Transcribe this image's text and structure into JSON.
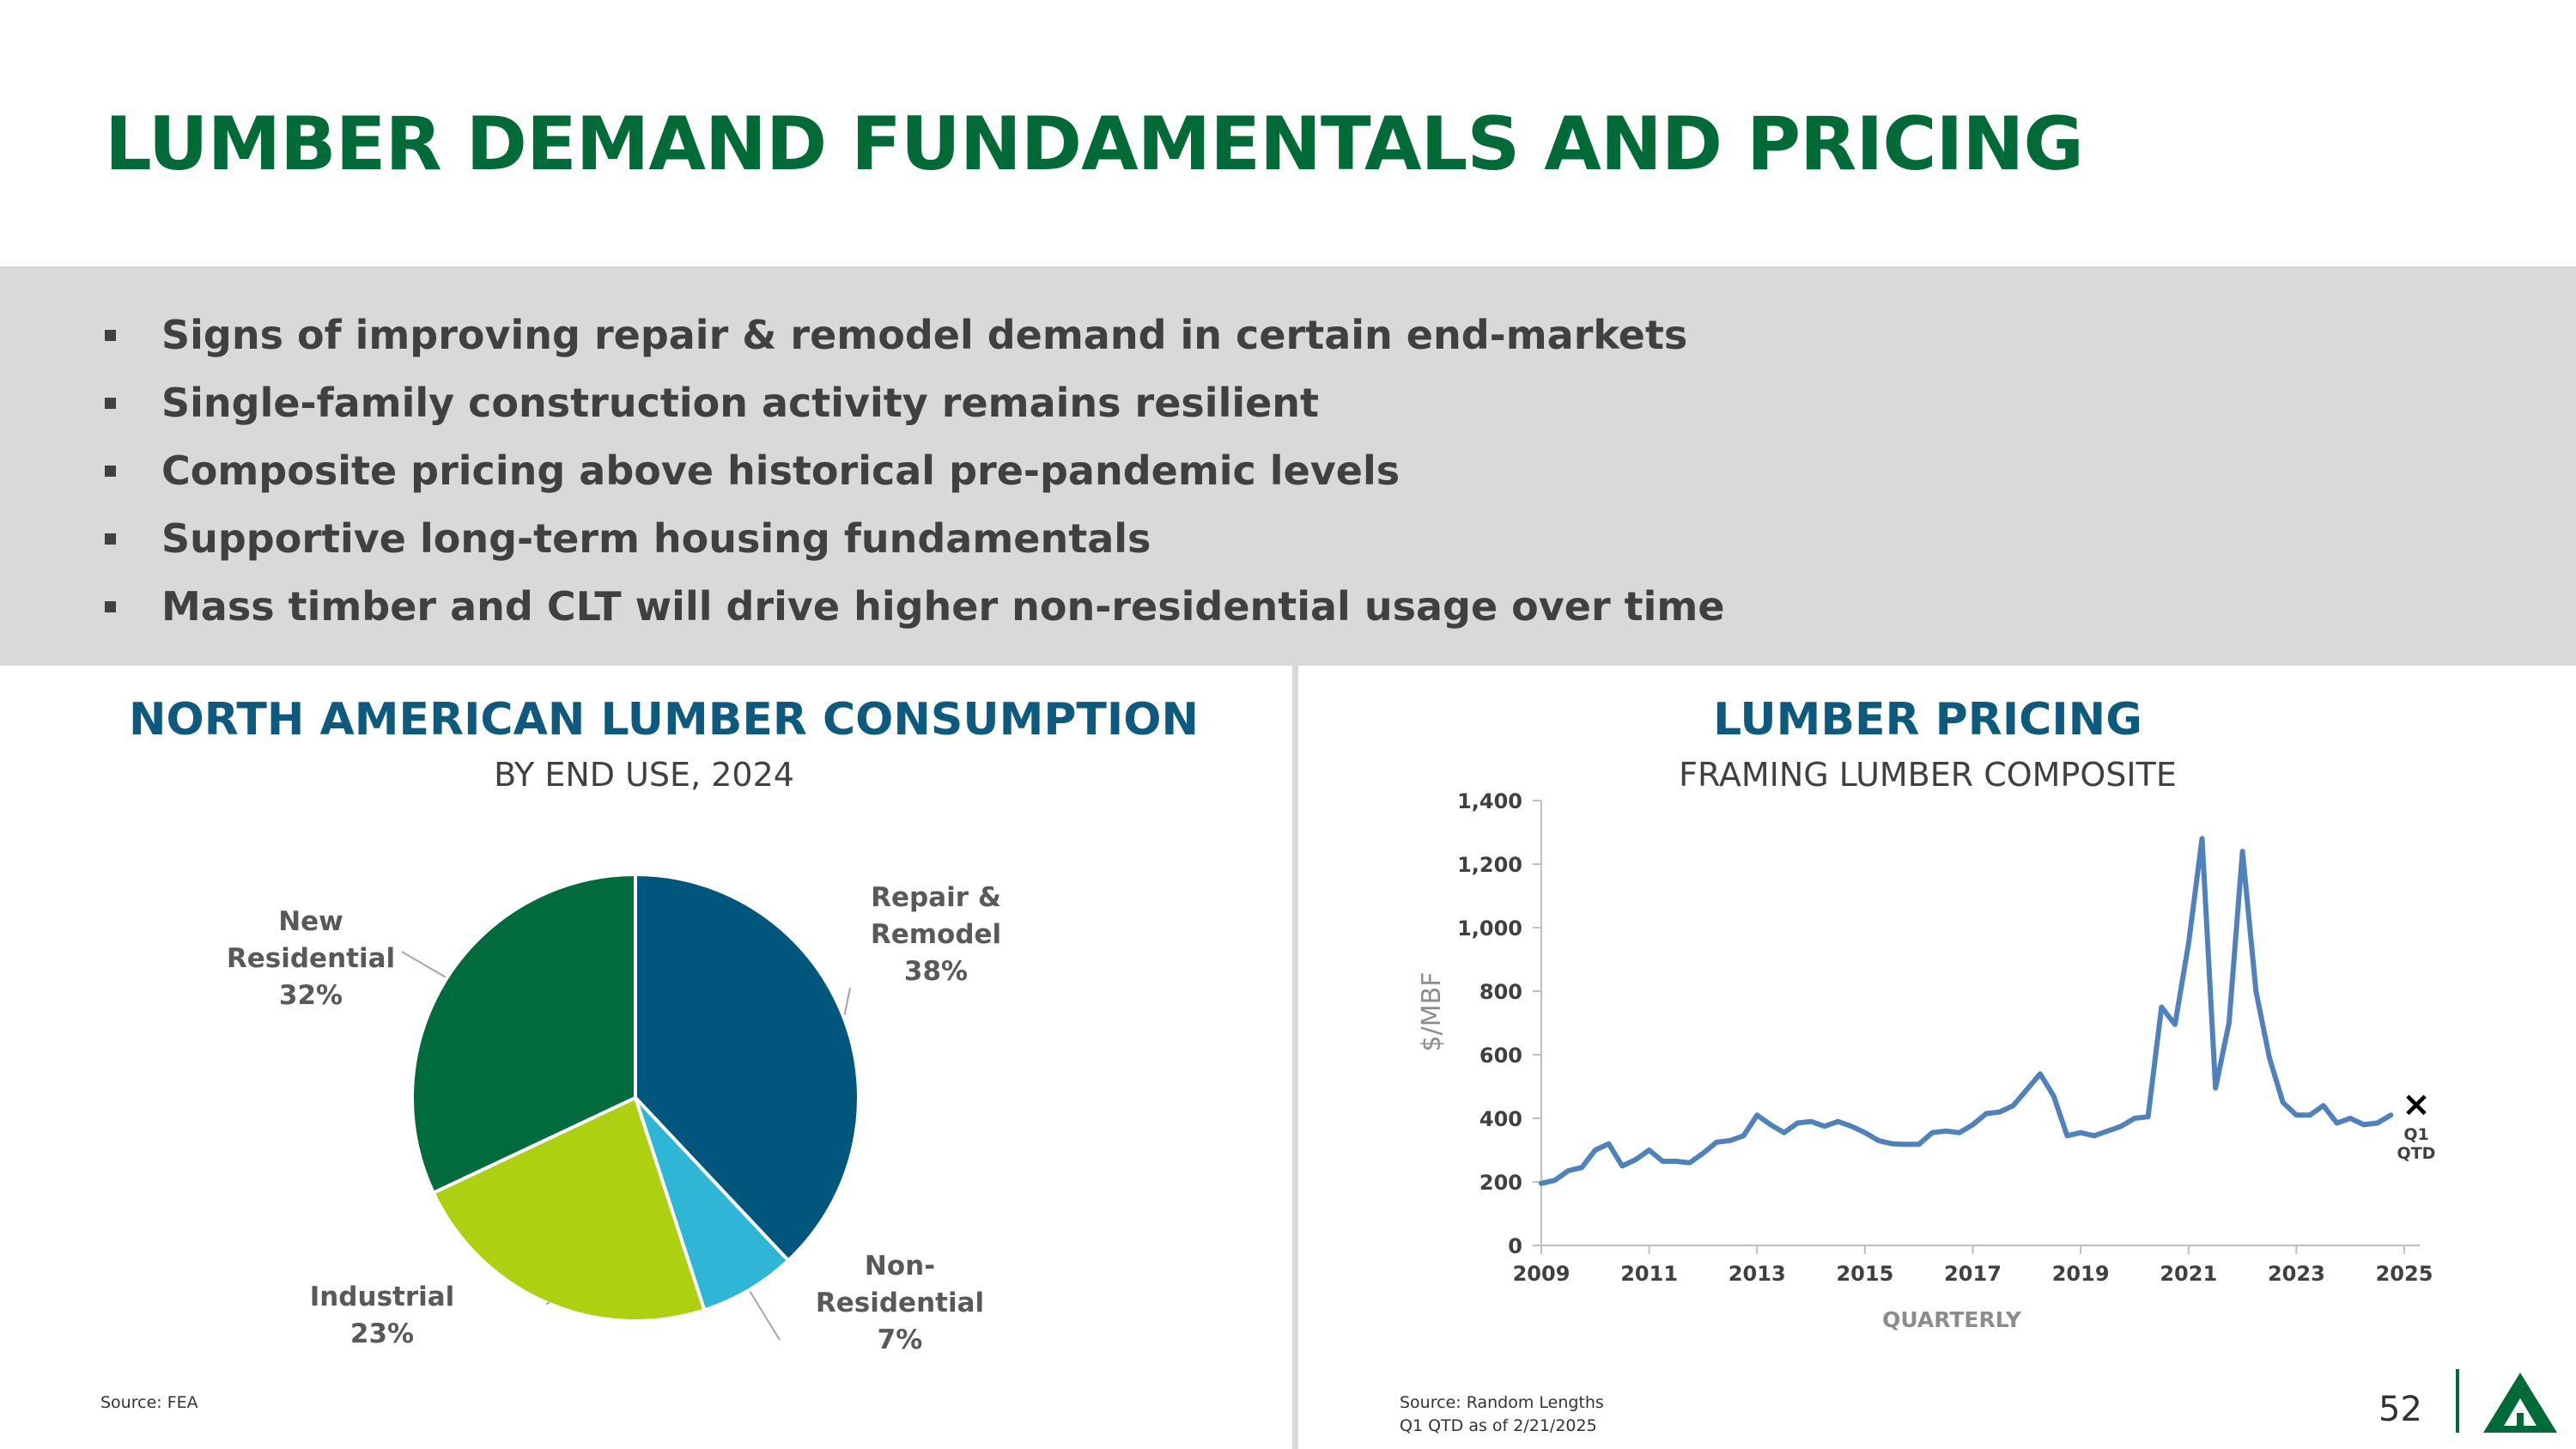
{
  "slide": {
    "title": "LUMBER DEMAND FUNDAMENTALS AND PRICING",
    "page_number": "52",
    "bullets": [
      "Signs of improving repair & remodel demand in certain end-markets",
      "Single-family construction activity remains resilient",
      "Composite pricing above historical pre-pandemic levels",
      "Supportive long-term housing fundamentals",
      "Mass timber and CLT will drive higher non-residential usage over time"
    ],
    "colors": {
      "title": "#006b37",
      "section_title": "#0d5a7e",
      "band": "#d9d9d9"
    },
    "logo_icon": "triangle-tree-logo-icon"
  },
  "left_panel": {
    "title": "NORTH AMERICAN LUMBER CONSUMPTION",
    "subtitle": "BY END USE, 2024",
    "source": "Source: FEA"
  },
  "right_panel": {
    "title": "LUMBER PRICING",
    "subtitle": "FRAMING LUMBER COMPOSITE",
    "source_lines": [
      "Source: Random Lengths",
      "Q1 QTD as of 2/21/2025"
    ]
  },
  "chart_data": [
    {
      "type": "pie",
      "title": "NORTH AMERICAN LUMBER CONSUMPTION",
      "subtitle": "BY END USE, 2024",
      "slices": [
        {
          "label_lines": [
            "Repair &",
            "Remodel"
          ],
          "value": 38,
          "value_label": "38%",
          "color": "#00567c"
        },
        {
          "label_lines": [
            "Non-",
            "Residential"
          ],
          "value": 7,
          "value_label": "7%",
          "color": "#2fb5d6"
        },
        {
          "label_lines": [
            "Industrial"
          ],
          "value": 23,
          "value_label": "23%",
          "color": "#add010"
        },
        {
          "label_lines": [
            "New",
            "Residential"
          ],
          "value": 32,
          "value_label": "32%",
          "color": "#006b3c"
        }
      ]
    },
    {
      "type": "line",
      "title": "LUMBER PRICING",
      "subtitle": "FRAMING LUMBER COMPOSITE",
      "xlabel": "QUARTERLY",
      "ylabel": "$/MBF",
      "xlim": [
        2009,
        2025
      ],
      "ylim": [
        0,
        1400
      ],
      "x_ticks": [
        "2009",
        "2011",
        "2013",
        "2015",
        "2017",
        "2019",
        "2021",
        "2023",
        "2025"
      ],
      "y_ticks": [
        "0",
        "200",
        "400",
        "600",
        "800",
        "1,000",
        "1,200",
        "1,400"
      ],
      "series_color": "#4f81bd",
      "series": [
        {
          "x": [
            2009.0,
            2009.25,
            2009.5,
            2009.75,
            2010.0,
            2010.25,
            2010.5,
            2010.75,
            2011.0,
            2011.25,
            2011.5,
            2011.75,
            2012.0,
            2012.25,
            2012.5,
            2012.75,
            2013.0,
            2013.25,
            2013.5,
            2013.75,
            2014.0,
            2014.25,
            2014.5,
            2014.75,
            2015.0,
            2015.25,
            2015.5,
            2015.75,
            2016.0,
            2016.25,
            2016.5,
            2016.75,
            2017.0,
            2017.25,
            2017.5,
            2017.75,
            2018.0,
            2018.25,
            2018.5,
            2018.75,
            2019.0,
            2019.25,
            2019.5,
            2019.75,
            2020.0,
            2020.25,
            2020.5,
            2020.75,
            2021.0,
            2021.25,
            2021.5,
            2021.75,
            2022.0,
            2022.25,
            2022.5,
            2022.75,
            2023.0,
            2023.25,
            2023.5,
            2023.75,
            2024.0,
            2024.25,
            2024.5,
            2024.75
          ],
          "y": [
            195,
            205,
            235,
            245,
            300,
            320,
            250,
            270,
            300,
            265,
            265,
            260,
            290,
            325,
            330,
            345,
            410,
            380,
            355,
            385,
            390,
            375,
            390,
            375,
            355,
            330,
            320,
            318,
            318,
            355,
            360,
            355,
            380,
            415,
            420,
            440,
            490,
            540,
            470,
            345,
            355,
            345,
            360,
            375,
            400,
            405,
            750,
            695,
            950,
            1280,
            495,
            700,
            1240,
            800,
            590,
            450,
            410,
            410,
            440,
            385,
            400,
            380,
            385,
            410
          ]
        }
      ],
      "marker": {
        "x": 2025.0,
        "y": 435,
        "symbol": "×",
        "label_lines": [
          "Q1",
          "QTD"
        ]
      }
    }
  ]
}
